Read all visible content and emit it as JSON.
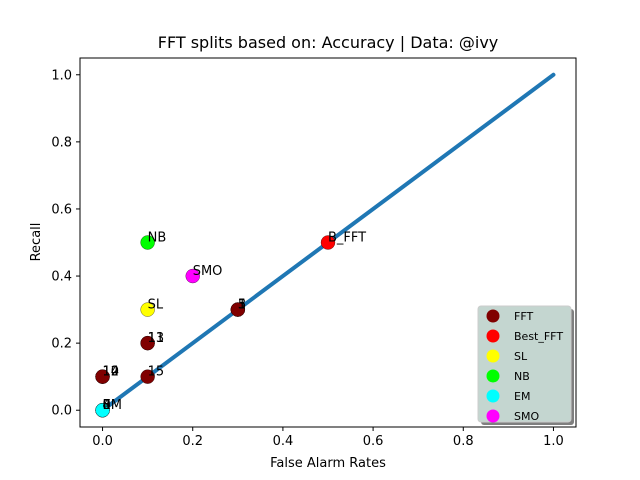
{
  "chart_data": {
    "type": "scatter",
    "title": "FFT splits based on: Accuracy  |  Data: @ivy",
    "xlabel": "False Alarm Rates",
    "ylabel": "Recall",
    "xlim": [
      -0.05,
      1.05
    ],
    "ylim": [
      -0.05,
      1.05
    ],
    "xticks": [
      "0.0",
      "0.2",
      "0.4",
      "0.6",
      "0.8",
      "1.0"
    ],
    "yticks": [
      "0.0",
      "0.2",
      "0.4",
      "0.6",
      "0.8",
      "1.0"
    ],
    "grid": false,
    "legend_position": "lower-right",
    "diagonal": {
      "x": [
        0,
        1
      ],
      "y": [
        0,
        1
      ],
      "color": "#1f77b4"
    },
    "series": [
      {
        "name": "FFT",
        "color": "#800000",
        "points": [
          {
            "x": 0.0,
            "y": 0.0,
            "label": "0"
          },
          {
            "x": 0.0,
            "y": 0.0,
            "label": "4"
          },
          {
            "x": 0.0,
            "y": 0.0,
            "label": "8"
          },
          {
            "x": 0.0,
            "y": 0.1,
            "label": "12"
          },
          {
            "x": 0.0,
            "y": 0.1,
            "label": "14"
          },
          {
            "x": 0.0,
            "y": 0.1,
            "label": "10"
          },
          {
            "x": 0.1,
            "y": 0.1,
            "label": "15"
          },
          {
            "x": 0.1,
            "y": 0.2,
            "label": "11"
          },
          {
            "x": 0.1,
            "y": 0.2,
            "label": "13"
          },
          {
            "x": 0.3,
            "y": 0.3,
            "label": "1"
          },
          {
            "x": 0.3,
            "y": 0.3,
            "label": "3"
          },
          {
            "x": 0.3,
            "y": 0.3,
            "label": "5"
          }
        ]
      },
      {
        "name": "Best_FFT",
        "color": "#ff0000",
        "points": [
          {
            "x": 0.5,
            "y": 0.5,
            "label": "B_FFT"
          }
        ]
      },
      {
        "name": "SL",
        "color": "#ffff00",
        "points": [
          {
            "x": 0.1,
            "y": 0.3,
            "label": "SL"
          }
        ]
      },
      {
        "name": "NB",
        "color": "#00ff00",
        "points": [
          {
            "x": 0.1,
            "y": 0.5,
            "label": "NB"
          }
        ]
      },
      {
        "name": "EM",
        "color": "#00ffff",
        "points": [
          {
            "x": 0.0,
            "y": 0.0,
            "label": "EM"
          }
        ]
      },
      {
        "name": "SMO",
        "color": "#ff00ff",
        "points": [
          {
            "x": 0.2,
            "y": 0.4,
            "label": "SMO"
          }
        ]
      }
    ]
  }
}
